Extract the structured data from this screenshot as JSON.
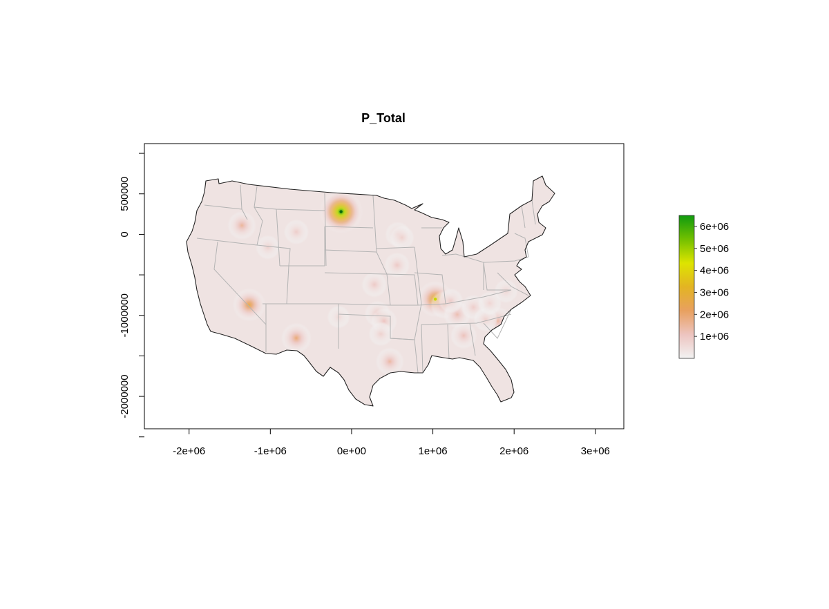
{
  "chart_data": {
    "type": "heatmap",
    "title": "P_Total",
    "xlabel": "",
    "ylabel": "",
    "x_ticks": [
      {
        "value": -2000000,
        "label": "-2e+06"
      },
      {
        "value": -1000000,
        "label": "-1e+06"
      },
      {
        "value": 0,
        "label": "0e+00"
      },
      {
        "value": 1000000,
        "label": "1e+06"
      },
      {
        "value": 2000000,
        "label": "2e+06"
      },
      {
        "value": 3000000,
        "label": "3e+06"
      }
    ],
    "y_ticks": [
      {
        "value": 500000,
        "label": "500000"
      },
      {
        "value": 0,
        "label": "0"
      },
      {
        "value": -1000000,
        "label": "-1000000"
      },
      {
        "value": -2000000,
        "label": "-2000000"
      }
    ],
    "y_minor_ticks": [
      1000000,
      -500000,
      -1500000,
      -2500000
    ],
    "xlim": [
      -2550000,
      3350000
    ],
    "ylim": [
      -2400000,
      1120000
    ],
    "legend": {
      "placement": "right",
      "range": [
        0,
        6500000
      ],
      "colors": [
        "#f2f2f2",
        "#edc4c0",
        "#e8a060",
        "#e3b423",
        "#dde400",
        "#73c000",
        "#0f9a0f"
      ],
      "ticks": [
        {
          "value": 1000000,
          "label": "1e+06"
        },
        {
          "value": 2000000,
          "label": "2e+06"
        },
        {
          "value": 3000000,
          "label": "3e+06"
        },
        {
          "value": 4000000,
          "label": "4e+06"
        },
        {
          "value": 5000000,
          "label": "5e+06"
        },
        {
          "value": 6000000,
          "label": "6e+06"
        }
      ]
    },
    "hotspots": [
      {
        "x": -130000,
        "y": 280000,
        "value": 6300000
      },
      {
        "x": 1030000,
        "y": -800000,
        "value": 3600000
      },
      {
        "x": -1260000,
        "y": -870000,
        "value": 2700000
      },
      {
        "x": -680000,
        "y": -1280000,
        "value": 2000000
      },
      {
        "x": -1350000,
        "y": 110000,
        "value": 1600000
      },
      {
        "x": 1140000,
        "y": -870000,
        "value": 1500000
      },
      {
        "x": 470000,
        "y": -1570000,
        "value": 1500000
      },
      {
        "x": 1800000,
        "y": -1070000,
        "value": 1500000
      },
      {
        "x": 1300000,
        "y": -990000,
        "value": 1300000
      },
      {
        "x": 1380000,
        "y": -1250000,
        "value": 1200000
      },
      {
        "x": 320000,
        "y": -980000,
        "value": 1100000
      },
      {
        "x": 400000,
        "y": -1070000,
        "value": 1100000
      },
      {
        "x": 570000,
        "y": 0,
        "value": 1000000
      },
      {
        "x": 560000,
        "y": -380000,
        "value": 1000000
      },
      {
        "x": 280000,
        "y": -620000,
        "value": 1000000
      },
      {
        "x": -680000,
        "y": 30000,
        "value": 900000
      },
      {
        "x": -1030000,
        "y": -160000,
        "value": 800000
      },
      {
        "x": 1500000,
        "y": -900000,
        "value": 900000
      },
      {
        "x": 1650000,
        "y": -1050000,
        "value": 800000
      },
      {
        "x": 360000,
        "y": -1230000,
        "value": 800000
      },
      {
        "x": 1900000,
        "y": -700000,
        "value": 700000
      },
      {
        "x": 1700000,
        "y": -850000,
        "value": 700000
      },
      {
        "x": -160000,
        "y": -1020000,
        "value": 600000
      },
      {
        "x": 620000,
        "y": -40000,
        "value": 800000
      },
      {
        "x": 1220000,
        "y": -820000,
        "value": 900000
      }
    ]
  }
}
